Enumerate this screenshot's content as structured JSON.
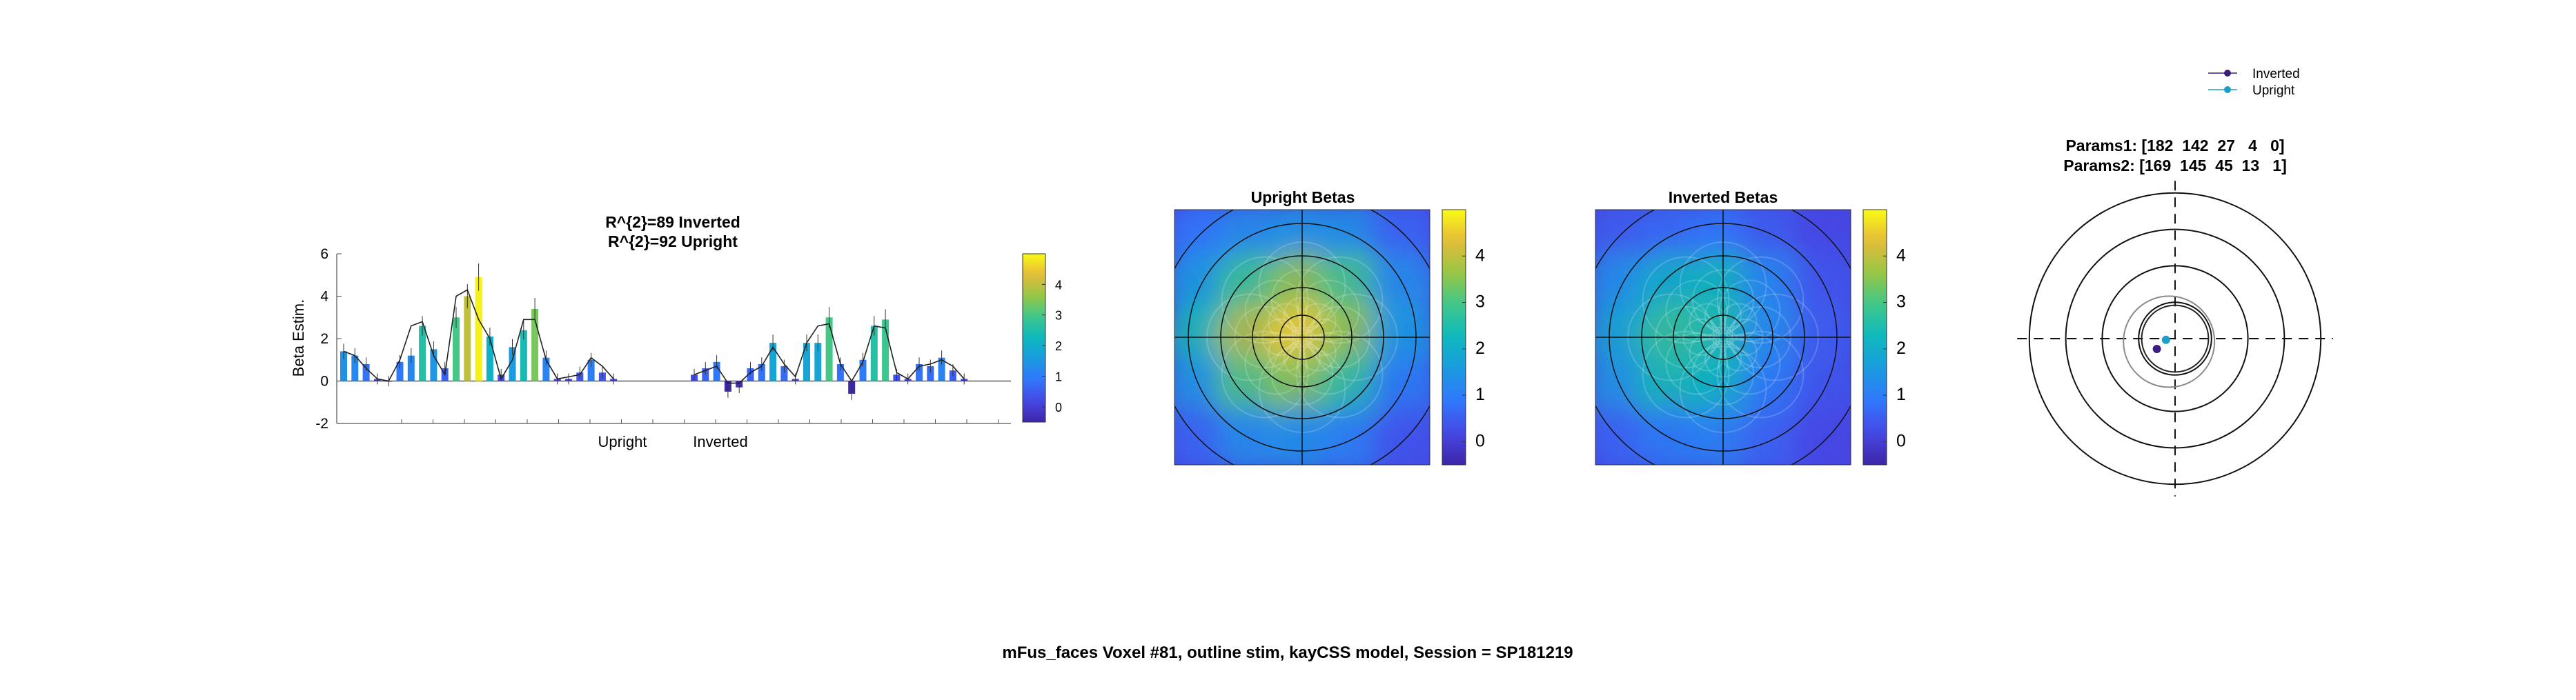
{
  "figure": {
    "caption": "mFus_faces Voxel #81, outline stim, kayCSS model, Session = SP181219"
  },
  "chart_data": [
    {
      "type": "bar",
      "title_lines": [
        "R^{2}=89 Inverted",
        "R^{2}=92 Upright"
      ],
      "ylabel": "Beta Estim.",
      "ylim": [
        -2,
        6
      ],
      "yticks": [
        -2,
        0,
        2,
        4,
        6
      ],
      "xgroup_labels": [
        "Upright",
        "Inverted"
      ],
      "colormap": "parula",
      "color_range": [
        -0.5,
        5.0
      ],
      "colorbar_ticks": [
        0,
        1,
        2,
        3,
        4
      ],
      "series": [
        {
          "name": "Upright",
          "values": [
            1.4,
            1.2,
            0.8,
            0.1,
            0.0,
            0.9,
            1.2,
            2.6,
            1.5,
            0.6,
            3.0,
            4.0,
            4.9,
            2.1,
            0.3,
            1.6,
            2.4,
            3.4,
            1.1,
            0.1,
            0.1,
            0.4,
            1.0,
            0.4,
            0.1
          ],
          "model_fit": [
            1.4,
            1.2,
            0.6,
            0.1,
            0.0,
            1.0,
            2.6,
            2.8,
            1.2,
            0.3,
            4.0,
            4.3,
            2.9,
            2.0,
            0.1,
            1.0,
            2.9,
            2.9,
            1.0,
            0.1,
            0.2,
            0.3,
            1.1,
            0.7,
            0.1
          ]
        },
        {
          "name": "Inverted",
          "values": [
            0.3,
            0.6,
            0.9,
            -0.5,
            -0.3,
            0.6,
            0.8,
            1.8,
            0.7,
            0.1,
            1.8,
            1.8,
            3.0,
            0.8,
            -0.6,
            1.0,
            2.6,
            2.9,
            0.3,
            0.1,
            0.8,
            0.7,
            1.1,
            0.5,
            0.1
          ],
          "model_fit": [
            0.3,
            0.5,
            0.7,
            -0.1,
            -0.1,
            0.4,
            0.7,
            1.6,
            0.8,
            0.2,
            1.8,
            2.6,
            2.7,
            0.8,
            0.0,
            0.9,
            2.6,
            2.5,
            0.4,
            0.1,
            0.7,
            0.8,
            1.0,
            0.7,
            0.1
          ]
        }
      ]
    },
    {
      "type": "heatmap",
      "title": "Upright Betas",
      "colormap": "parula",
      "color_range": [
        -0.5,
        5.0
      ],
      "colorbar_ticks": [
        0,
        1,
        2,
        3,
        4
      ],
      "grid_rows": 5,
      "grid_cols": 5,
      "values": [
        [
          0.9,
          1.3,
          1.5,
          1.4,
          0.6
        ],
        [
          1.6,
          2.9,
          3.6,
          3.0,
          1.3
        ],
        [
          2.4,
          3.9,
          4.6,
          3.6,
          1.6
        ],
        [
          1.5,
          3.1,
          3.5,
          2.7,
          1.0
        ],
        [
          0.6,
          1.3,
          1.4,
          1.1,
          0.4
        ]
      ]
    },
    {
      "type": "heatmap",
      "title": "Inverted Betas",
      "colormap": "parula",
      "color_range": [
        -0.5,
        5.0
      ],
      "colorbar_ticks": [
        0,
        1,
        2,
        3,
        4
      ],
      "grid_rows": 5,
      "grid_cols": 5,
      "values": [
        [
          0.5,
          0.7,
          0.9,
          0.5,
          0.2
        ],
        [
          1.4,
          2.1,
          2.3,
          1.2,
          0.4
        ],
        [
          1.9,
          2.8,
          2.5,
          1.3,
          0.5
        ],
        [
          1.5,
          2.4,
          2.2,
          1.0,
          0.4
        ],
        [
          0.6,
          1.0,
          1.1,
          0.6,
          0.2
        ]
      ]
    },
    {
      "type": "scatter",
      "title_lines": [
        "Params1: [182  142  27   4   0]",
        "Params2: [169  145  45  13   1]"
      ],
      "legend_position": "top-right",
      "legend": [
        {
          "name": "Inverted",
          "color": "#3b1f7a"
        },
        {
          "name": "Upright",
          "color": "#1aa0c8"
        }
      ],
      "points": [
        {
          "series": "Inverted",
          "x": -0.3,
          "y": -0.17
        },
        {
          "series": "Upright",
          "x": -0.15,
          "y": -0.02
        }
      ],
      "fov_rings": [
        0.6,
        1.2,
        1.8,
        2.4
      ],
      "prf_circles": [
        {
          "series": "Inverted",
          "x": 0.0,
          "y": 0.0,
          "r": 0.55
        },
        {
          "series": "Upright",
          "x": -0.1,
          "y": -0.05,
          "r": 0.75
        }
      ]
    }
  ]
}
